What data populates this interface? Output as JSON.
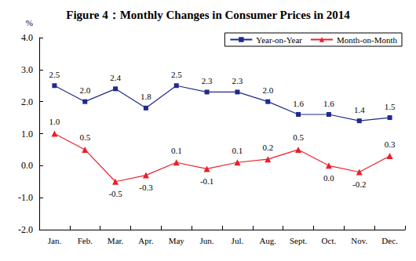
{
  "chart_data": {
    "type": "line",
    "title": "Figure 4：Monthly Changes in Consumer Prices in 2014",
    "y_label": "%",
    "categories": [
      "Jan.",
      "Feb.",
      "Mar.",
      "Apr.",
      "May",
      "Jun.",
      "Jul.",
      "Aug.",
      "Sept.",
      "Oct.",
      "Nov.",
      "Dec."
    ],
    "series": [
      {
        "name": "Year-on-Year",
        "color": "#1f2a8a",
        "marker": "square",
        "values": [
          2.5,
          2.0,
          2.4,
          1.8,
          2.5,
          2.3,
          2.3,
          2.0,
          1.6,
          1.6,
          1.4,
          1.5
        ],
        "value_labels": [
          "2.5",
          "2.0",
          "2.4",
          "1.8",
          "2.5",
          "2.3",
          "2.3",
          "2.0",
          "1.6",
          "1.6",
          "1.4",
          "1.5"
        ]
      },
      {
        "name": "Month-on-Month",
        "color": "#e8202a",
        "marker": "triangle",
        "values": [
          1.0,
          0.5,
          -0.5,
          -0.3,
          0.1,
          -0.1,
          0.1,
          0.2,
          0.5,
          0.0,
          -0.2,
          0.3
        ],
        "value_labels": [
          "1.0",
          "0.5",
          "-0.5",
          "-0.3",
          "0.1",
          "-0.1",
          "0.1",
          "0.2",
          "0.5",
          "0.0",
          "-0.2",
          "0.3"
        ]
      }
    ],
    "ylim": [
      -2,
      4
    ],
    "yticks": [
      {
        "value": -2,
        "label": "-2.0"
      },
      {
        "value": -1,
        "label": "-1.0"
      },
      {
        "value": 0,
        "label": "0.0"
      },
      {
        "value": 1,
        "label": "1.0"
      },
      {
        "value": 2,
        "label": "2.0"
      },
      {
        "value": 3,
        "label": "3.0"
      },
      {
        "value": 4,
        "label": "4.0"
      }
    ],
    "grid": false,
    "legend": "upper right",
    "data_labels": true
  }
}
